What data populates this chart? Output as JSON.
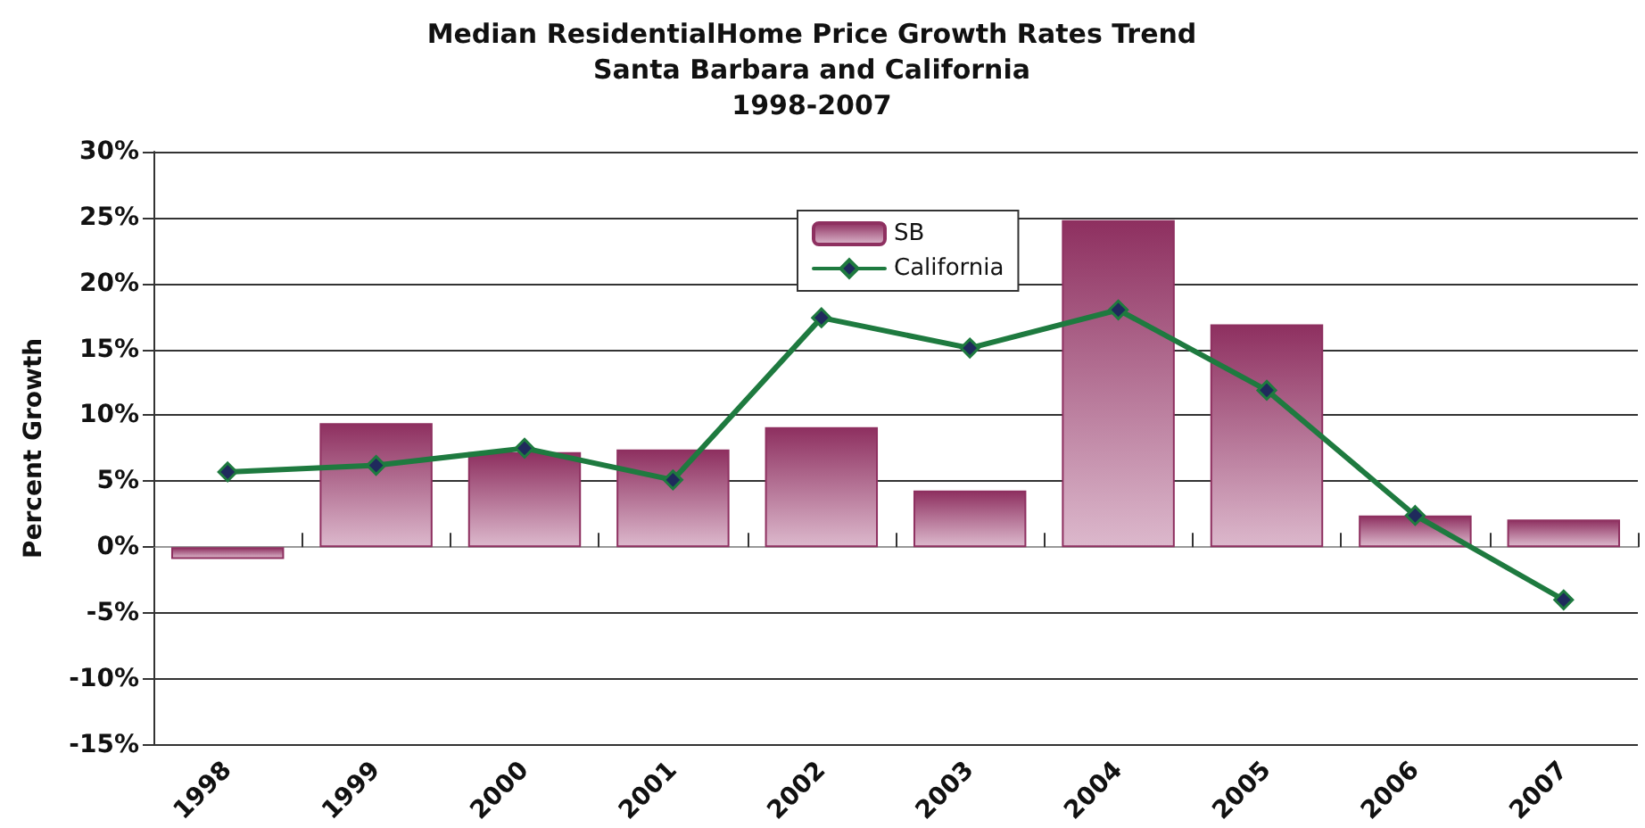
{
  "chart_data": {
    "type": "bar",
    "title": "Median ResidentialHome Price Growth Rates Trend\nSanta Barbara and California\n1998-2007",
    "ylabel": "Percent Growth",
    "categories": [
      "1998",
      "1999",
      "2000",
      "2001",
      "2002",
      "2003",
      "2004",
      "2005",
      "2006",
      "2007"
    ],
    "series": [
      {
        "name": "SB",
        "color": "#8e3060",
        "values": [
          -0.9,
          9.4,
          7.2,
          7.4,
          9.1,
          4.3,
          24.8,
          16.9,
          2.4,
          2.1
        ]
      },
      {
        "name": "California",
        "type": "line",
        "color": "#1e7a3f",
        "values": [
          5.7,
          6.2,
          7.5,
          5.1,
          17.4,
          15.1,
          18.0,
          11.9,
          2.4,
          -4.0
        ]
      }
    ],
    "ylim": [
      -15,
      30
    ],
    "yticks": [
      {
        "value": -15,
        "label": "-15%"
      },
      {
        "value": -10,
        "label": "-10%"
      },
      {
        "value": -5,
        "label": "-5%"
      },
      {
        "value": 0,
        "label": "0%"
      },
      {
        "value": 5,
        "label": "5%"
      },
      {
        "value": 10,
        "label": "10%"
      },
      {
        "value": 15,
        "label": "15%"
      },
      {
        "value": 20,
        "label": "20%"
      },
      {
        "value": 25,
        "label": "25%"
      },
      {
        "value": 30,
        "label": "30%"
      }
    ],
    "grid": "y",
    "legend": "top",
    "marker": "diamond",
    "line_style": "solid"
  }
}
